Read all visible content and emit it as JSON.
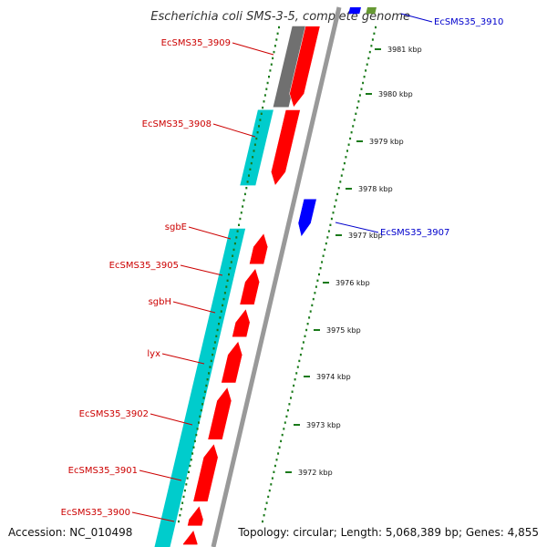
{
  "title": "Escherichia coli SMS-3-5, complete genome",
  "footer": {
    "accession": "Accession: NC_010498",
    "topology": "Topology: circular; Length: 5,068,389 bp; Genes: 4,855"
  },
  "colors": {
    "forward_cds": "#ff0000",
    "reverse_cds": "#0000ff",
    "gene_feature": "#00cccc",
    "pseudo_feature": "#707070",
    "other_feature": "#669933",
    "label_forward": "#cc0000",
    "label_reverse": "#0000cc",
    "tick": "#1a7a1a",
    "backbone": "#999999"
  },
  "ticks": [
    {
      "label": "3981 kbp"
    },
    {
      "label": "3980 kbp"
    },
    {
      "label": "3979 kbp"
    },
    {
      "label": "3978 kbp"
    },
    {
      "label": "3977 kbp"
    },
    {
      "label": "3976 kbp"
    },
    {
      "label": "3975 kbp"
    },
    {
      "label": "3974 kbp"
    },
    {
      "label": "3973 kbp"
    },
    {
      "label": "3972 kbp"
    }
  ],
  "gene_labels": [
    {
      "name": "EcSMS35_3910",
      "strand": "reverse"
    },
    {
      "name": "EcSMS35_3909",
      "strand": "forward"
    },
    {
      "name": "EcSMS35_3908",
      "strand": "forward"
    },
    {
      "name": "EcSMS35_3907",
      "strand": "reverse"
    },
    {
      "name": "sgbE",
      "strand": "forward"
    },
    {
      "name": "EcSMS35_3905",
      "strand": "forward"
    },
    {
      "name": "sgbH",
      "strand": "forward"
    },
    {
      "name": "lyx",
      "strand": "forward"
    },
    {
      "name": "EcSMS35_3902",
      "strand": "forward"
    },
    {
      "name": "EcSMS35_3901",
      "strand": "forward"
    },
    {
      "name": "EcSMS35_3900",
      "strand": "forward"
    }
  ]
}
